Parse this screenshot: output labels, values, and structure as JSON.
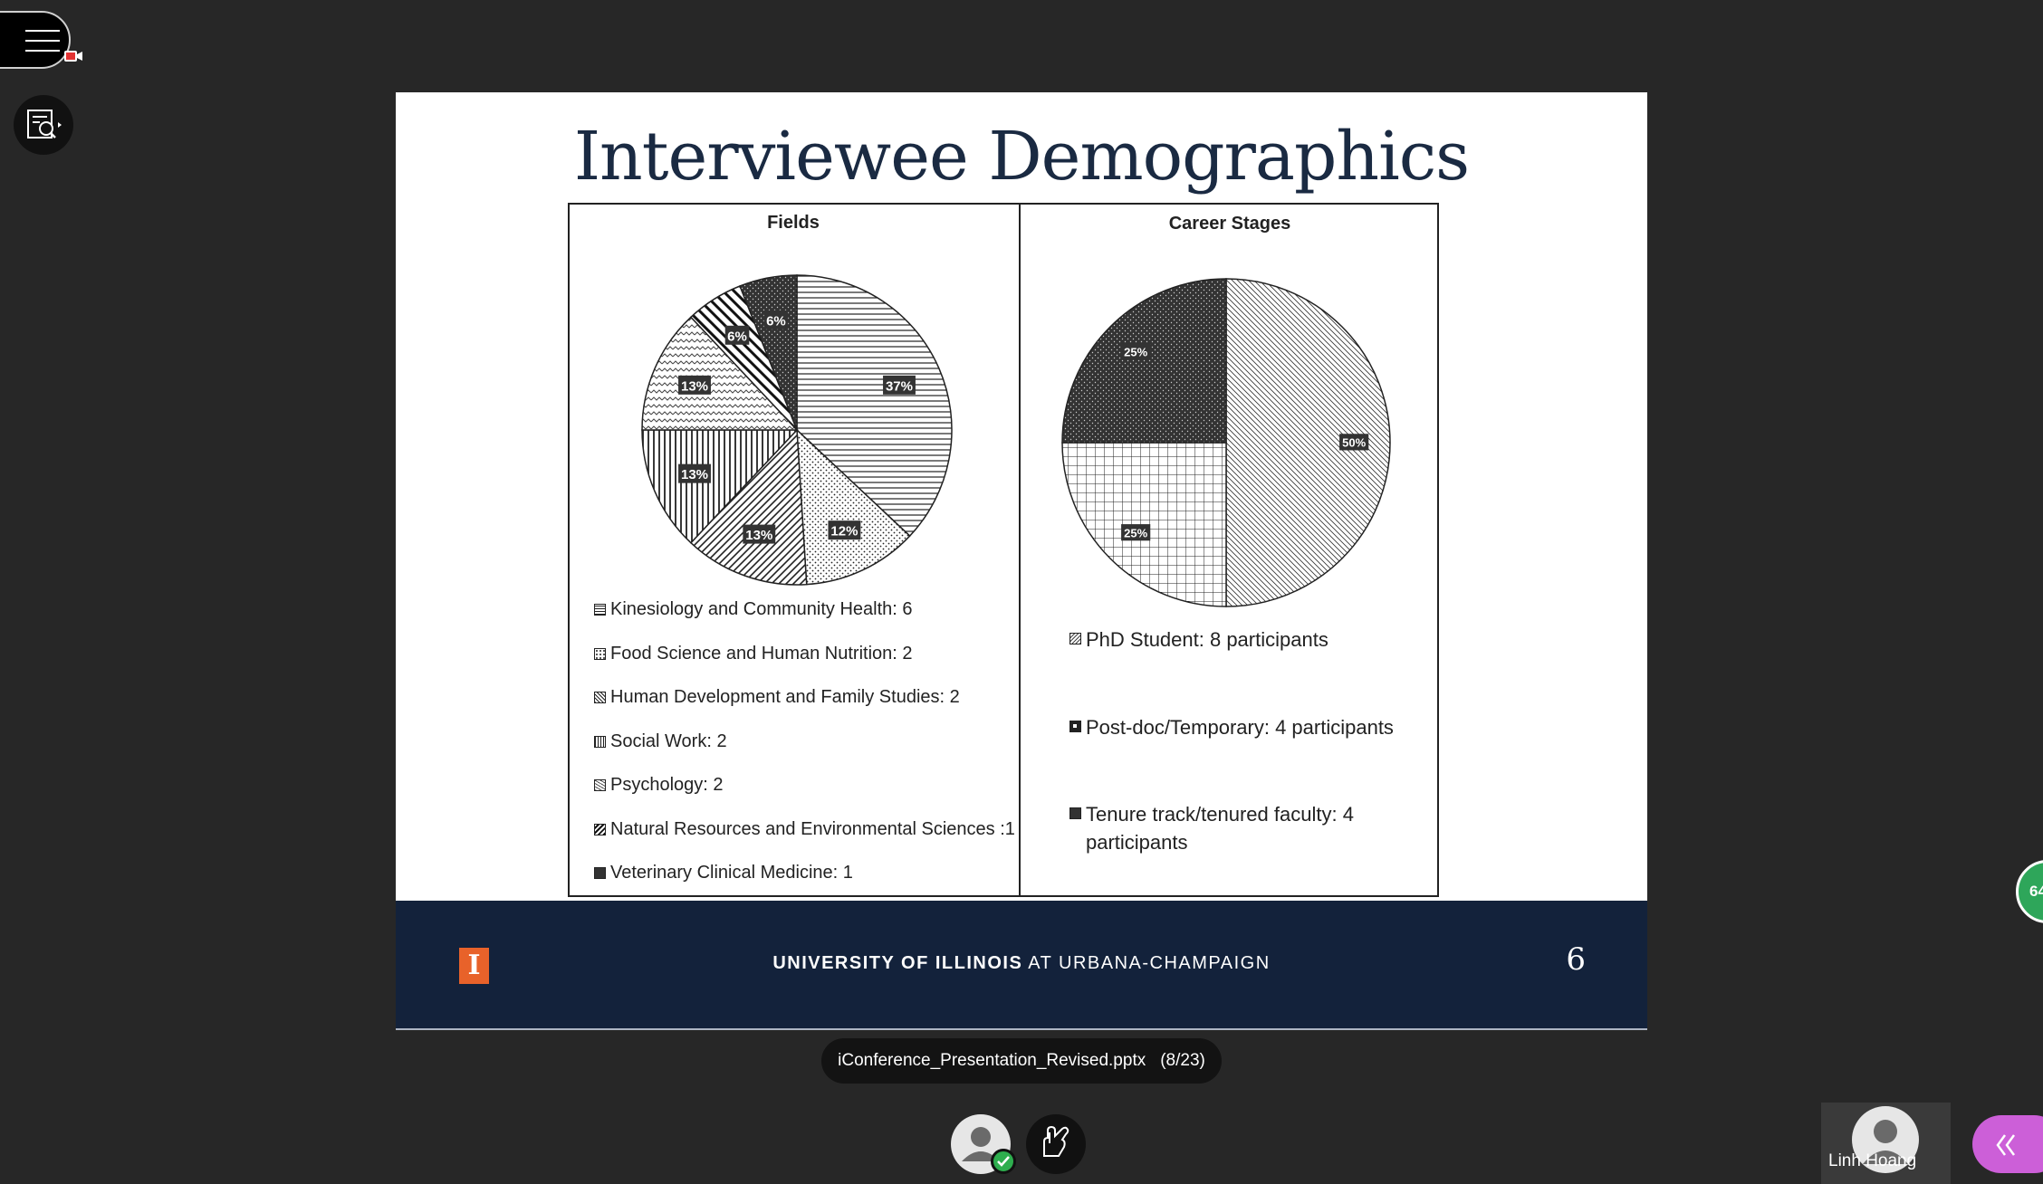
{
  "slide": {
    "title": "Interviewee Demographics",
    "footer": {
      "logo_letter": "I",
      "university_bold": "UNIVERSITY OF ILLINOIS",
      "university_rest": " AT URBANA-CHAMPAIGN",
      "page_number": "6"
    }
  },
  "chart_data": [
    {
      "type": "pie",
      "title": "Fields",
      "slices": [
        {
          "label": "Kinesiology and Community Health: 6",
          "value": 37,
          "pct_label": "37%",
          "pattern": "hstripe"
        },
        {
          "label": "Food Science and Human Nutrition: 2",
          "value": 12,
          "pct_label": "12%",
          "pattern": "dots"
        },
        {
          "label": "Human Development and Family Studies: 2",
          "value": 13,
          "pct_label": "13%",
          "pattern": "diag"
        },
        {
          "label": "Social Work: 2",
          "value": 13,
          "pct_label": "13%",
          "pattern": "vstripe"
        },
        {
          "label": "Psychology: 2",
          "value": 13,
          "pct_label": "13%",
          "pattern": "zigzag"
        },
        {
          "label": "Natural Resources and Environmental Sciences :1",
          "value": 6,
          "pct_label": "6%",
          "pattern": "diagback"
        },
        {
          "label": "Veterinary Clinical Medicine: 1",
          "value": 6,
          "pct_label": "6%",
          "pattern": "darkdots"
        }
      ]
    },
    {
      "type": "pie",
      "title": "Career Stages",
      "slices": [
        {
          "label": "PhD Student: 8 participants",
          "value": 50,
          "pct_label": "50%",
          "pattern": "finediag"
        },
        {
          "label": "Post-doc/Temporary: 4 participants",
          "value": 25,
          "pct_label": "25%",
          "pattern": "grid"
        },
        {
          "label": "Tenure track/tenured faculty: 4 participants",
          "value": 25,
          "pct_label": "25%",
          "pattern": "darkdots"
        }
      ]
    }
  ],
  "presentation": {
    "file_name": "iConference_Presentation_Revised.pptx",
    "page_indicator": "(8/23)"
  },
  "participant": {
    "name": "Linh Hoang"
  },
  "notification": {
    "count_text": "64"
  },
  "icons": {
    "menu": "hamburger-menu-icon",
    "tools": "search-document-icon",
    "hand": "raise-hand-icon",
    "collab": "double-chevron-left-icon"
  },
  "colors": {
    "footer_bg": "#13223b",
    "logo": "#e8622a",
    "collab_tab": "#cc5fd8",
    "status": "#2eae4e"
  }
}
